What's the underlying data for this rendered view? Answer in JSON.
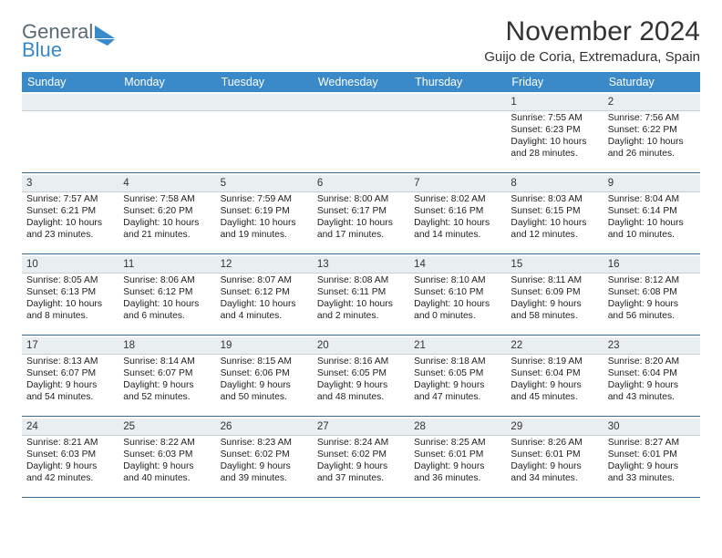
{
  "logo": {
    "word1": "General",
    "word2": "Blue",
    "text_color": "#5a6a72",
    "accent_color": "#3a89c9"
  },
  "title": "November 2024",
  "location": "Guijo de Coria, Extremadura, Spain",
  "colors": {
    "header_bg": "#3a89c9",
    "header_text": "#ffffff",
    "daynum_bg": "#e9eef1",
    "week_border": "#3a6a8f",
    "body_text": "#222222"
  },
  "day_headers": [
    "Sunday",
    "Monday",
    "Tuesday",
    "Wednesday",
    "Thursday",
    "Friday",
    "Saturday"
  ],
  "weeks": [
    [
      null,
      null,
      null,
      null,
      null,
      {
        "n": "1",
        "sr": "7:55 AM",
        "ss": "6:23 PM",
        "dl": "10 hours and 28 minutes."
      },
      {
        "n": "2",
        "sr": "7:56 AM",
        "ss": "6:22 PM",
        "dl": "10 hours and 26 minutes."
      }
    ],
    [
      {
        "n": "3",
        "sr": "7:57 AM",
        "ss": "6:21 PM",
        "dl": "10 hours and 23 minutes."
      },
      {
        "n": "4",
        "sr": "7:58 AM",
        "ss": "6:20 PM",
        "dl": "10 hours and 21 minutes."
      },
      {
        "n": "5",
        "sr": "7:59 AM",
        "ss": "6:19 PM",
        "dl": "10 hours and 19 minutes."
      },
      {
        "n": "6",
        "sr": "8:00 AM",
        "ss": "6:17 PM",
        "dl": "10 hours and 17 minutes."
      },
      {
        "n": "7",
        "sr": "8:02 AM",
        "ss": "6:16 PM",
        "dl": "10 hours and 14 minutes."
      },
      {
        "n": "8",
        "sr": "8:03 AM",
        "ss": "6:15 PM",
        "dl": "10 hours and 12 minutes."
      },
      {
        "n": "9",
        "sr": "8:04 AM",
        "ss": "6:14 PM",
        "dl": "10 hours and 10 minutes."
      }
    ],
    [
      {
        "n": "10",
        "sr": "8:05 AM",
        "ss": "6:13 PM",
        "dl": "10 hours and 8 minutes."
      },
      {
        "n": "11",
        "sr": "8:06 AM",
        "ss": "6:12 PM",
        "dl": "10 hours and 6 minutes."
      },
      {
        "n": "12",
        "sr": "8:07 AM",
        "ss": "6:12 PM",
        "dl": "10 hours and 4 minutes."
      },
      {
        "n": "13",
        "sr": "8:08 AM",
        "ss": "6:11 PM",
        "dl": "10 hours and 2 minutes."
      },
      {
        "n": "14",
        "sr": "8:10 AM",
        "ss": "6:10 PM",
        "dl": "10 hours and 0 minutes."
      },
      {
        "n": "15",
        "sr": "8:11 AM",
        "ss": "6:09 PM",
        "dl": "9 hours and 58 minutes."
      },
      {
        "n": "16",
        "sr": "8:12 AM",
        "ss": "6:08 PM",
        "dl": "9 hours and 56 minutes."
      }
    ],
    [
      {
        "n": "17",
        "sr": "8:13 AM",
        "ss": "6:07 PM",
        "dl": "9 hours and 54 minutes."
      },
      {
        "n": "18",
        "sr": "8:14 AM",
        "ss": "6:07 PM",
        "dl": "9 hours and 52 minutes."
      },
      {
        "n": "19",
        "sr": "8:15 AM",
        "ss": "6:06 PM",
        "dl": "9 hours and 50 minutes."
      },
      {
        "n": "20",
        "sr": "8:16 AM",
        "ss": "6:05 PM",
        "dl": "9 hours and 48 minutes."
      },
      {
        "n": "21",
        "sr": "8:18 AM",
        "ss": "6:05 PM",
        "dl": "9 hours and 47 minutes."
      },
      {
        "n": "22",
        "sr": "8:19 AM",
        "ss": "6:04 PM",
        "dl": "9 hours and 45 minutes."
      },
      {
        "n": "23",
        "sr": "8:20 AM",
        "ss": "6:04 PM",
        "dl": "9 hours and 43 minutes."
      }
    ],
    [
      {
        "n": "24",
        "sr": "8:21 AM",
        "ss": "6:03 PM",
        "dl": "9 hours and 42 minutes."
      },
      {
        "n": "25",
        "sr": "8:22 AM",
        "ss": "6:03 PM",
        "dl": "9 hours and 40 minutes."
      },
      {
        "n": "26",
        "sr": "8:23 AM",
        "ss": "6:02 PM",
        "dl": "9 hours and 39 minutes."
      },
      {
        "n": "27",
        "sr": "8:24 AM",
        "ss": "6:02 PM",
        "dl": "9 hours and 37 minutes."
      },
      {
        "n": "28",
        "sr": "8:25 AM",
        "ss": "6:01 PM",
        "dl": "9 hours and 36 minutes."
      },
      {
        "n": "29",
        "sr": "8:26 AM",
        "ss": "6:01 PM",
        "dl": "9 hours and 34 minutes."
      },
      {
        "n": "30",
        "sr": "8:27 AM",
        "ss": "6:01 PM",
        "dl": "9 hours and 33 minutes."
      }
    ]
  ],
  "labels": {
    "sunrise": "Sunrise: ",
    "sunset": "Sunset: ",
    "daylight": "Daylight: "
  }
}
